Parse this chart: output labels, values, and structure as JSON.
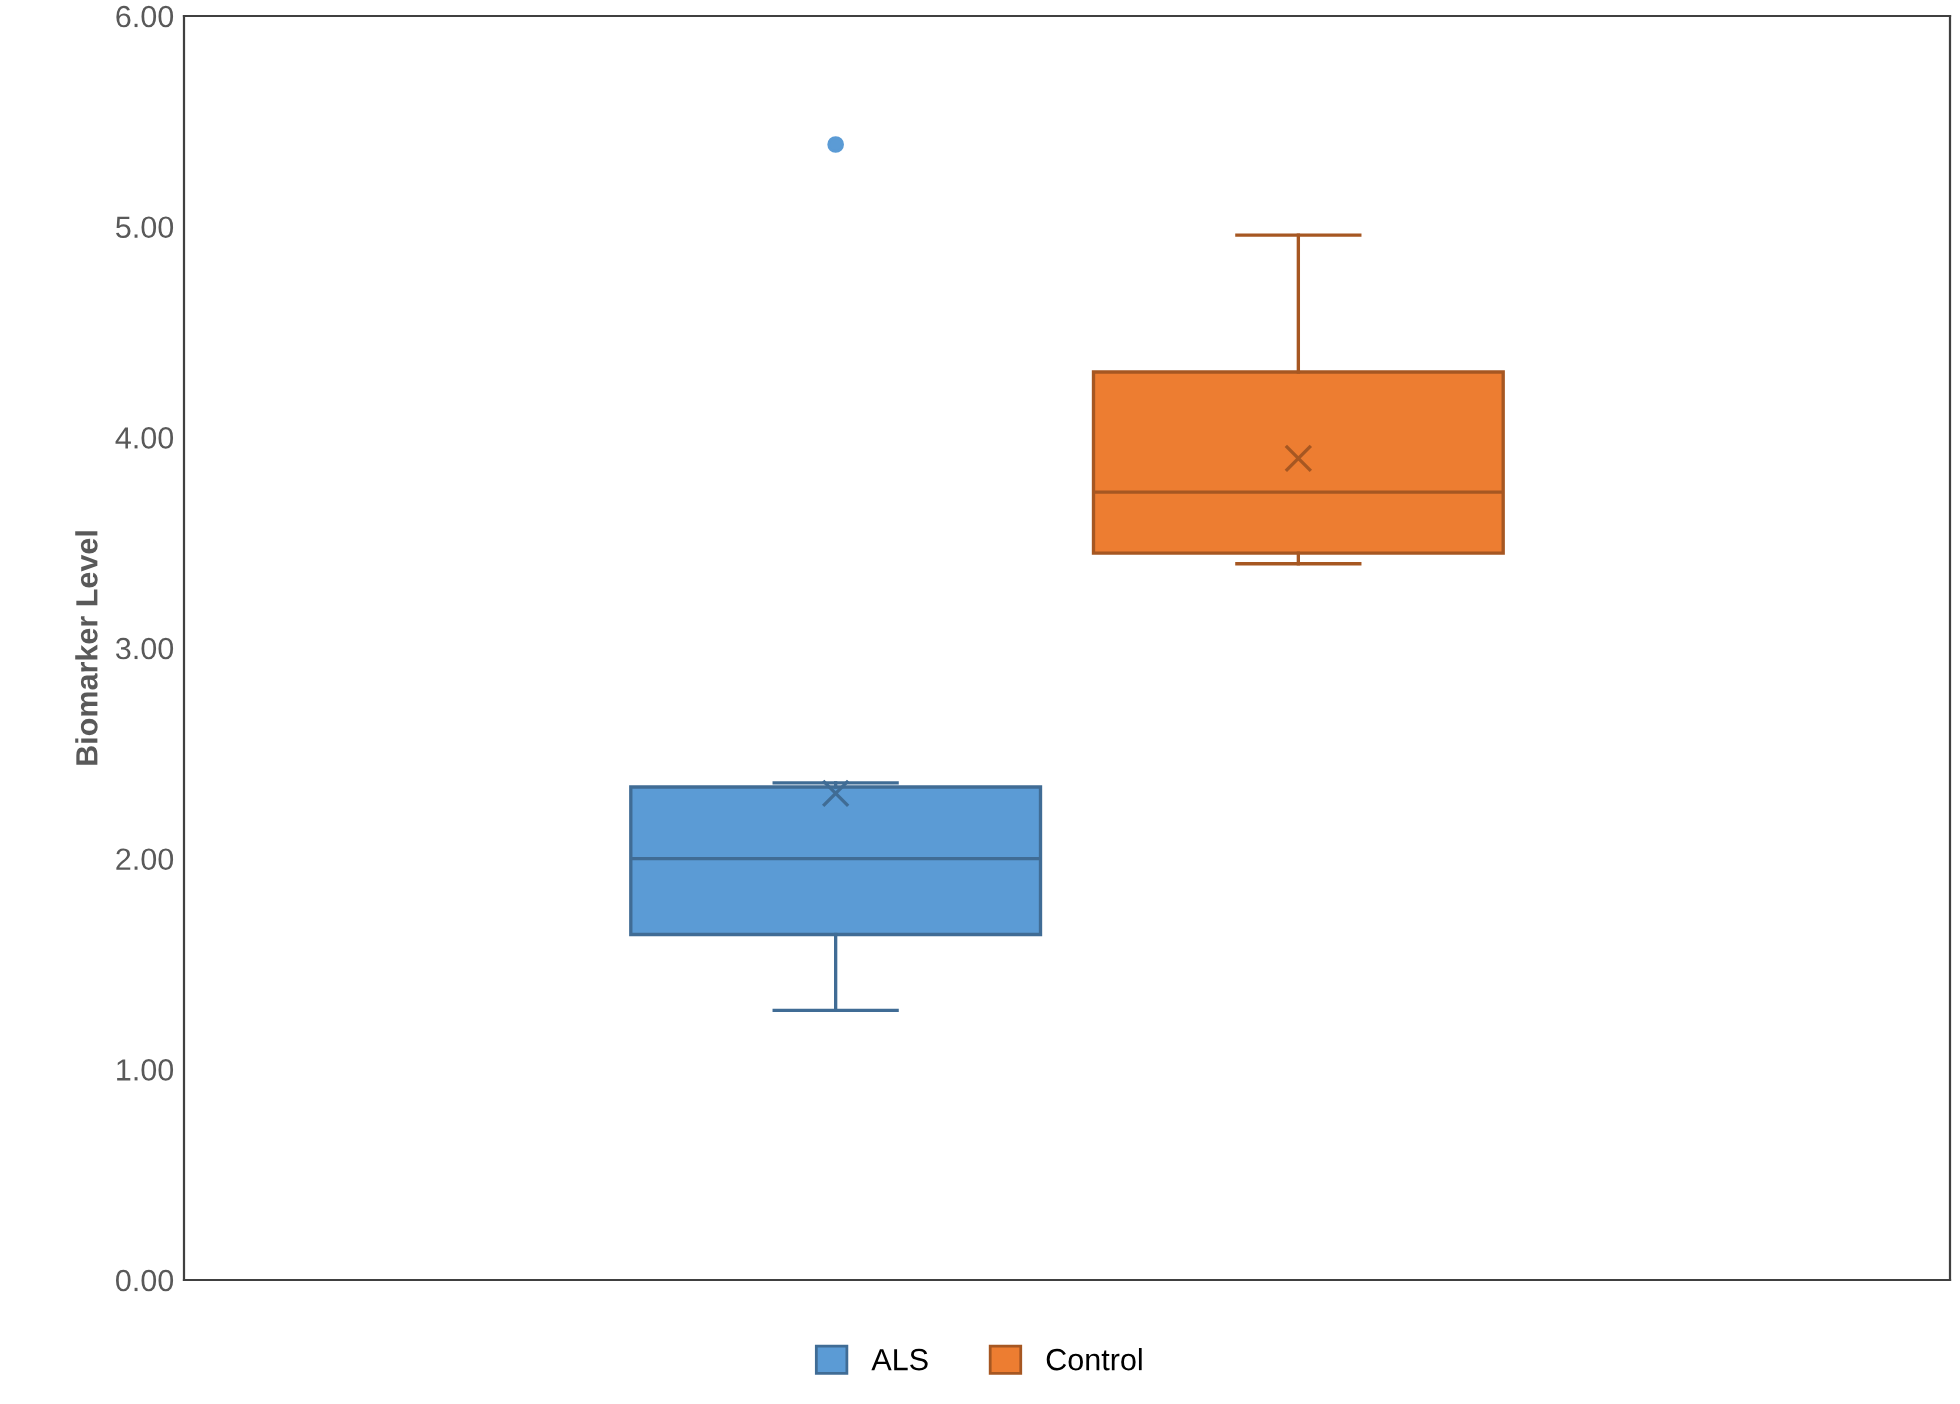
{
  "chart_data": {
    "type": "box",
    "ylabel": "Biomarker Level",
    "categories": [
      null
    ],
    "series": [
      {
        "name": "ALS",
        "color": "#5b9bd5",
        "boxes": [
          {
            "low": 1.28,
            "q1": 1.64,
            "median": 2.0,
            "q3": 2.34,
            "high": 2.36,
            "mean": 2.31,
            "outliers": [
              5.39
            ]
          }
        ]
      },
      {
        "name": "Control",
        "color": "#ed7d31",
        "boxes": [
          {
            "low": 3.4,
            "q1": 3.45,
            "median": 3.74,
            "q3": 4.31,
            "high": 4.96,
            "mean": 3.9
          }
        ]
      }
    ],
    "ylim": [
      0,
      6
    ],
    "yticks": [
      {
        "value": 0,
        "label": "0.00"
      },
      {
        "value": 1,
        "label": "1.00"
      },
      {
        "value": 2,
        "label": "2.00"
      },
      {
        "value": 3,
        "label": "3.00"
      },
      {
        "value": 4,
        "label": "4.00"
      },
      {
        "value": 5,
        "label": "5.00"
      },
      {
        "value": 6,
        "label": "6.00"
      }
    ],
    "tick_labels": "y",
    "grid": false,
    "legend": "bottom"
  }
}
